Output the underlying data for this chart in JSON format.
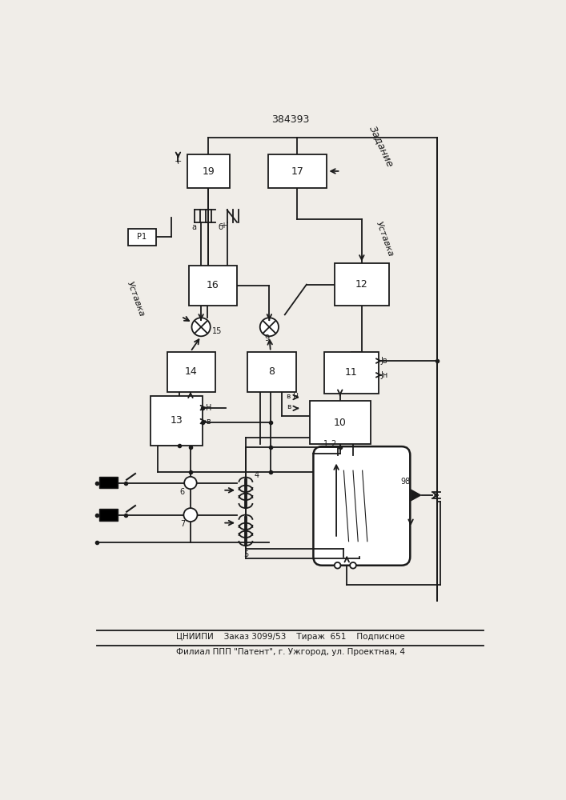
{
  "bg_color": "#f0ede8",
  "lc": "#1a1a1a",
  "title": "384393",
  "zadanie": "Задание",
  "ustavka": "Уставка",
  "footer1": "ЦНИИПИ    Заказ 3099/53    Тираж  651    Подписное",
  "footer2": "Филиал ППП \"Патент\", г. Ужгород, ул. Проектная, 4"
}
